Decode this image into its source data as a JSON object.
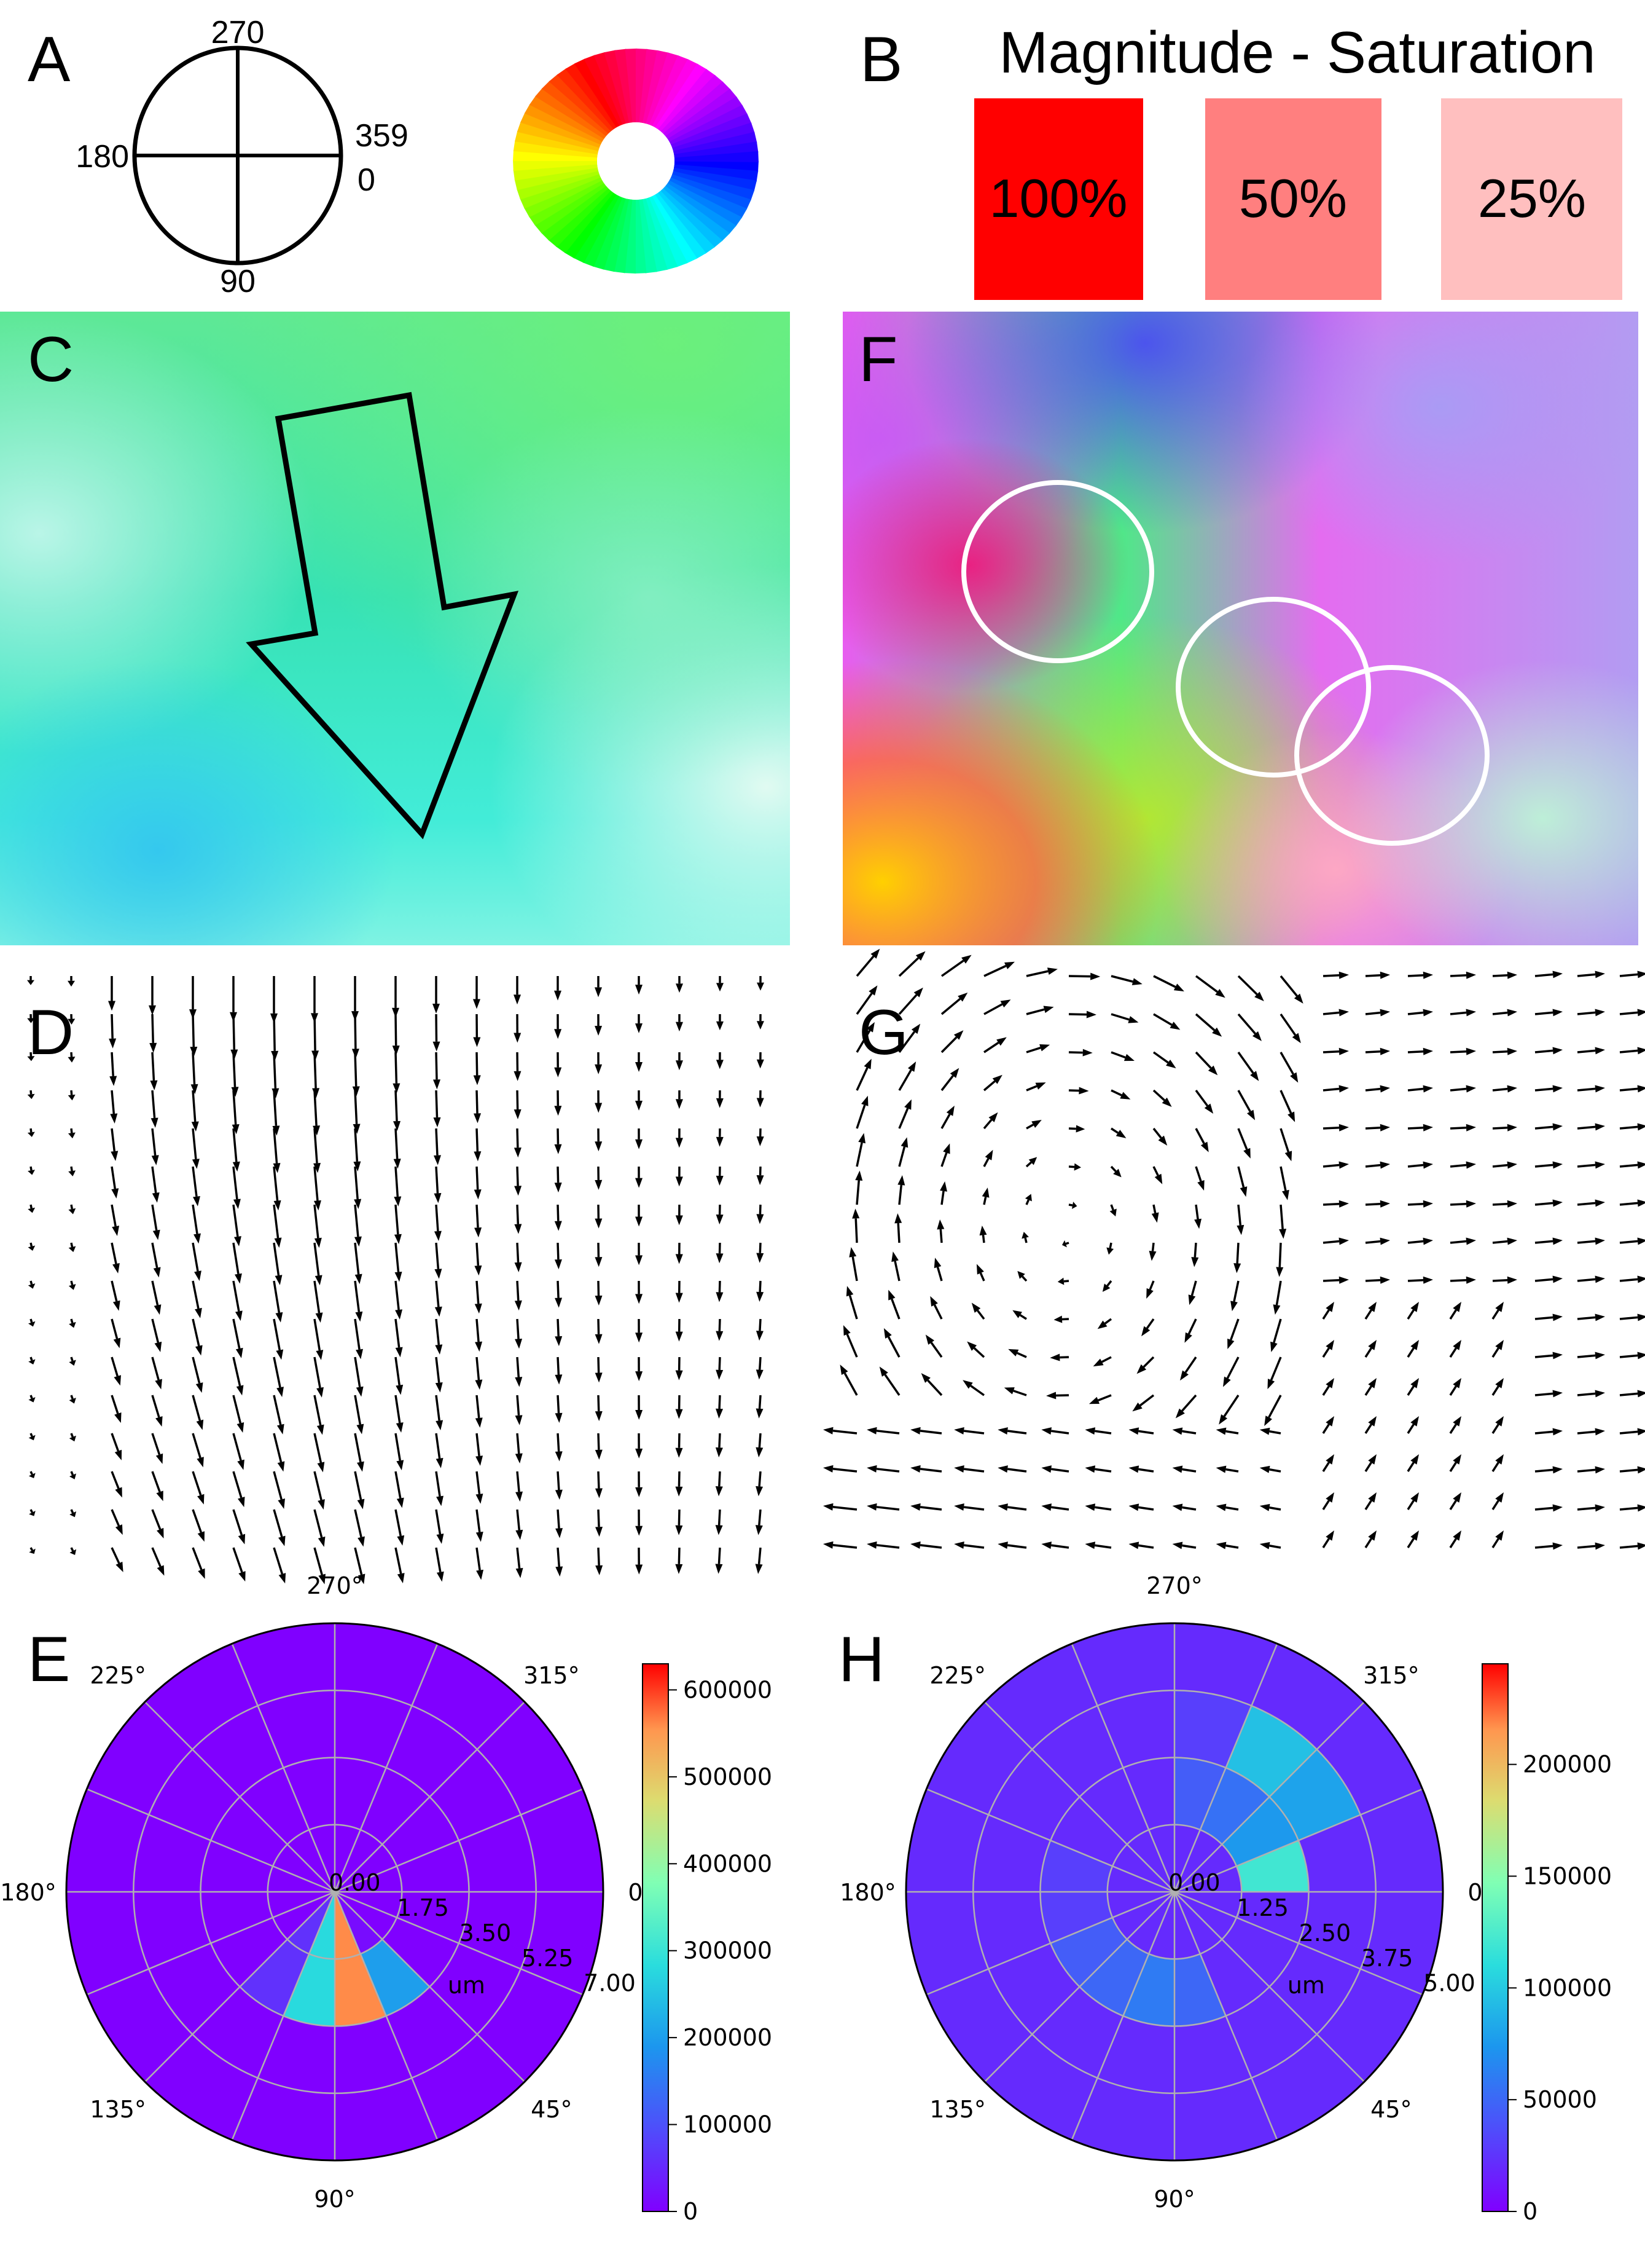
{
  "panels": {
    "A": {
      "letter": "A",
      "angles": {
        "top": "270",
        "right_top": "359",
        "right_bottom": "0",
        "left": "180",
        "bottom": "90"
      }
    },
    "B": {
      "letter": "B",
      "title": "Magnitude - Saturation",
      "swatches": [
        {
          "label": "100%",
          "color": "#ff0000"
        },
        {
          "label": "50%",
          "color": "#ff7f7f"
        },
        {
          "label": "25%",
          "color": "#ffbfbf"
        }
      ]
    },
    "C": {
      "letter": "C"
    },
    "F": {
      "letter": "F"
    },
    "D": {
      "letter": "D"
    },
    "G": {
      "letter": "G"
    },
    "E": {
      "letter": "E"
    },
    "H": {
      "letter": "H"
    }
  },
  "chart_data": [
    {
      "panel": "E",
      "type": "heatmap",
      "projection": "polar",
      "theta_tick_labels": [
        "0°",
        "45°",
        "90°",
        "135°",
        "180°",
        "225°",
        "270°",
        "315°"
      ],
      "radial_tick_labels": [
        "0.00",
        "1.75",
        "3.50",
        "5.25",
        "7.00"
      ],
      "radial_label": "um",
      "rlim": [
        0,
        7.0
      ],
      "colorbar": {
        "min": 0,
        "max": 630000,
        "ticks": [
          "0",
          "100000",
          "200000",
          "300000",
          "400000",
          "500000",
          "600000"
        ]
      },
      "nonzero_bins": [
        {
          "theta_from": 45,
          "theta_to": 67.5,
          "r_from": 0,
          "r_to": 1.75,
          "value": 15000
        },
        {
          "theta_from": 45,
          "theta_to": 67.5,
          "r_from": 1.75,
          "r_to": 3.5,
          "value": 200000
        },
        {
          "theta_from": 67.5,
          "theta_to": 90,
          "r_from": 0,
          "r_to": 3.5,
          "value": 560000
        },
        {
          "theta_from": 90,
          "theta_to": 112.5,
          "r_from": 0,
          "r_to": 3.5,
          "value": 280000
        },
        {
          "theta_from": 112.5,
          "theta_to": 135,
          "r_from": 0,
          "r_to": 3.5,
          "value": 60000
        }
      ],
      "background_value": 0
    },
    {
      "panel": "H",
      "type": "heatmap",
      "projection": "polar",
      "theta_tick_labels": [
        "0°",
        "45°",
        "90°",
        "135°",
        "180°",
        "225°",
        "270°",
        "315°"
      ],
      "radial_tick_labels": [
        "0.00",
        "1.25",
        "2.50",
        "3.75",
        "5.00"
      ],
      "radial_label": "um",
      "rlim": [
        0,
        5.0
      ],
      "colorbar": {
        "min": 0,
        "max": 245000,
        "ticks": [
          "0",
          "50000",
          "100000",
          "150000",
          "200000"
        ]
      },
      "nonzero_bins": [
        {
          "theta_from": 337.5,
          "theta_to": 360,
          "r_from": 1.25,
          "r_to": 2.5,
          "value": 120000
        },
        {
          "theta_from": 315,
          "theta_to": 337.5,
          "r_from": 1.25,
          "r_to": 2.5,
          "value": 75000
        },
        {
          "theta_from": 315,
          "theta_to": 337.5,
          "r_from": 2.5,
          "r_to": 3.75,
          "value": 80000
        },
        {
          "theta_from": 292.5,
          "theta_to": 315,
          "r_from": 1.25,
          "r_to": 2.5,
          "value": 55000
        },
        {
          "theta_from": 292.5,
          "theta_to": 315,
          "r_from": 2.5,
          "r_to": 3.75,
          "value": 95000
        },
        {
          "theta_from": 270,
          "theta_to": 292.5,
          "r_from": 1.25,
          "r_to": 2.5,
          "value": 45000
        },
        {
          "theta_from": 270,
          "theta_to": 292.5,
          "r_from": 2.5,
          "r_to": 3.75,
          "value": 30000
        },
        {
          "theta_from": 67.5,
          "theta_to": 90,
          "r_from": 1.25,
          "r_to": 2.5,
          "value": 50000
        },
        {
          "theta_from": 90,
          "theta_to": 112.5,
          "r_from": 1.25,
          "r_to": 2.5,
          "value": 60000
        },
        {
          "theta_from": 112.5,
          "theta_to": 135,
          "r_from": 1.25,
          "r_to": 2.5,
          "value": 50000
        },
        {
          "theta_from": 135,
          "theta_to": 157.5,
          "r_from": 1.25,
          "r_to": 2.5,
          "value": 45000
        },
        {
          "theta_from": 157.5,
          "theta_to": 180,
          "r_from": 1.25,
          "r_to": 2.5,
          "value": 30000
        },
        {
          "theta_from": 180,
          "theta_to": 202.5,
          "r_from": 1.25,
          "r_to": 2.5,
          "value": 30000
        }
      ],
      "background_value": 20000
    }
  ]
}
